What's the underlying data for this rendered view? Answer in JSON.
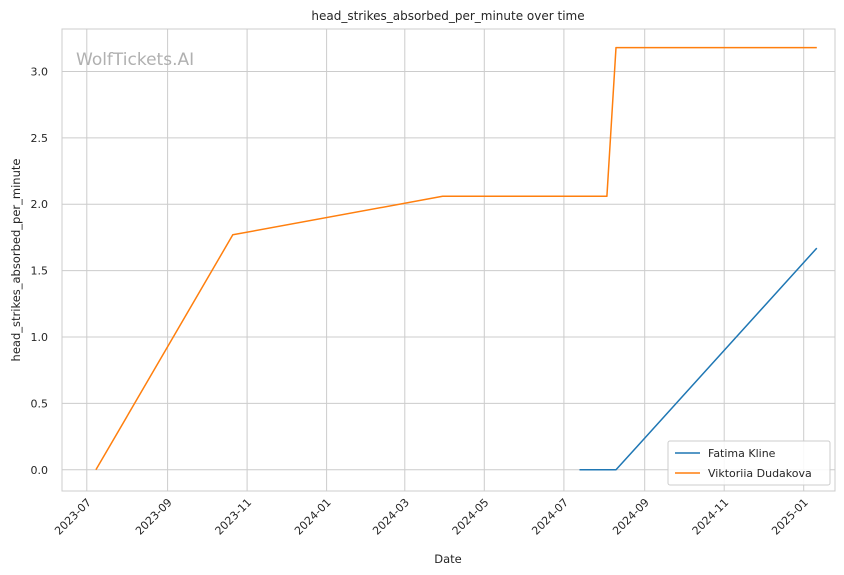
{
  "chart_data": {
    "type": "line",
    "title": "head_strikes_absorbed_per_minute over time",
    "xlabel": "Date",
    "ylabel": "head_strikes_absorbed_per_minute",
    "watermark": "WolfTickets.AI",
    "x_range": [
      "2023-06-12",
      "2025-01-25"
    ],
    "y_range": [
      -0.16,
      3.32
    ],
    "x_ticks": [
      "2023-07-01",
      "2023-09-01",
      "2023-11-01",
      "2024-01-01",
      "2024-03-01",
      "2024-05-01",
      "2024-07-01",
      "2024-09-01",
      "2024-11-01",
      "2025-01-01"
    ],
    "x_tick_labels": [
      "2023-07",
      "2023-09",
      "2023-11",
      "2024-01",
      "2024-03",
      "2024-05",
      "2024-07",
      "2024-09",
      "2024-11",
      "2025-01"
    ],
    "y_ticks": [
      0.0,
      0.5,
      1.0,
      1.5,
      2.0,
      2.5,
      3.0
    ],
    "y_tick_labels": [
      "0.0",
      "0.5",
      "1.0",
      "1.5",
      "2.0",
      "2.5",
      "3.0"
    ],
    "grid": true,
    "legend_position": "lower-right",
    "series": [
      {
        "name": "Fatima Kline",
        "color": "#1f77b4",
        "points": [
          {
            "x": "2024-07-13",
            "y": 0.0
          },
          {
            "x": "2024-08-10",
            "y": 0.0
          },
          {
            "x": "2025-01-11",
            "y": 1.67
          }
        ]
      },
      {
        "name": "Viktoriia Dudakova",
        "color": "#ff7f0e",
        "points": [
          {
            "x": "2023-07-08",
            "y": 0.0
          },
          {
            "x": "2023-10-21",
            "y": 1.77
          },
          {
            "x": "2024-03-30",
            "y": 2.06
          },
          {
            "x": "2024-08-03",
            "y": 2.06
          },
          {
            "x": "2024-08-10",
            "y": 3.18
          },
          {
            "x": "2025-01-11",
            "y": 3.18
          }
        ]
      }
    ]
  }
}
